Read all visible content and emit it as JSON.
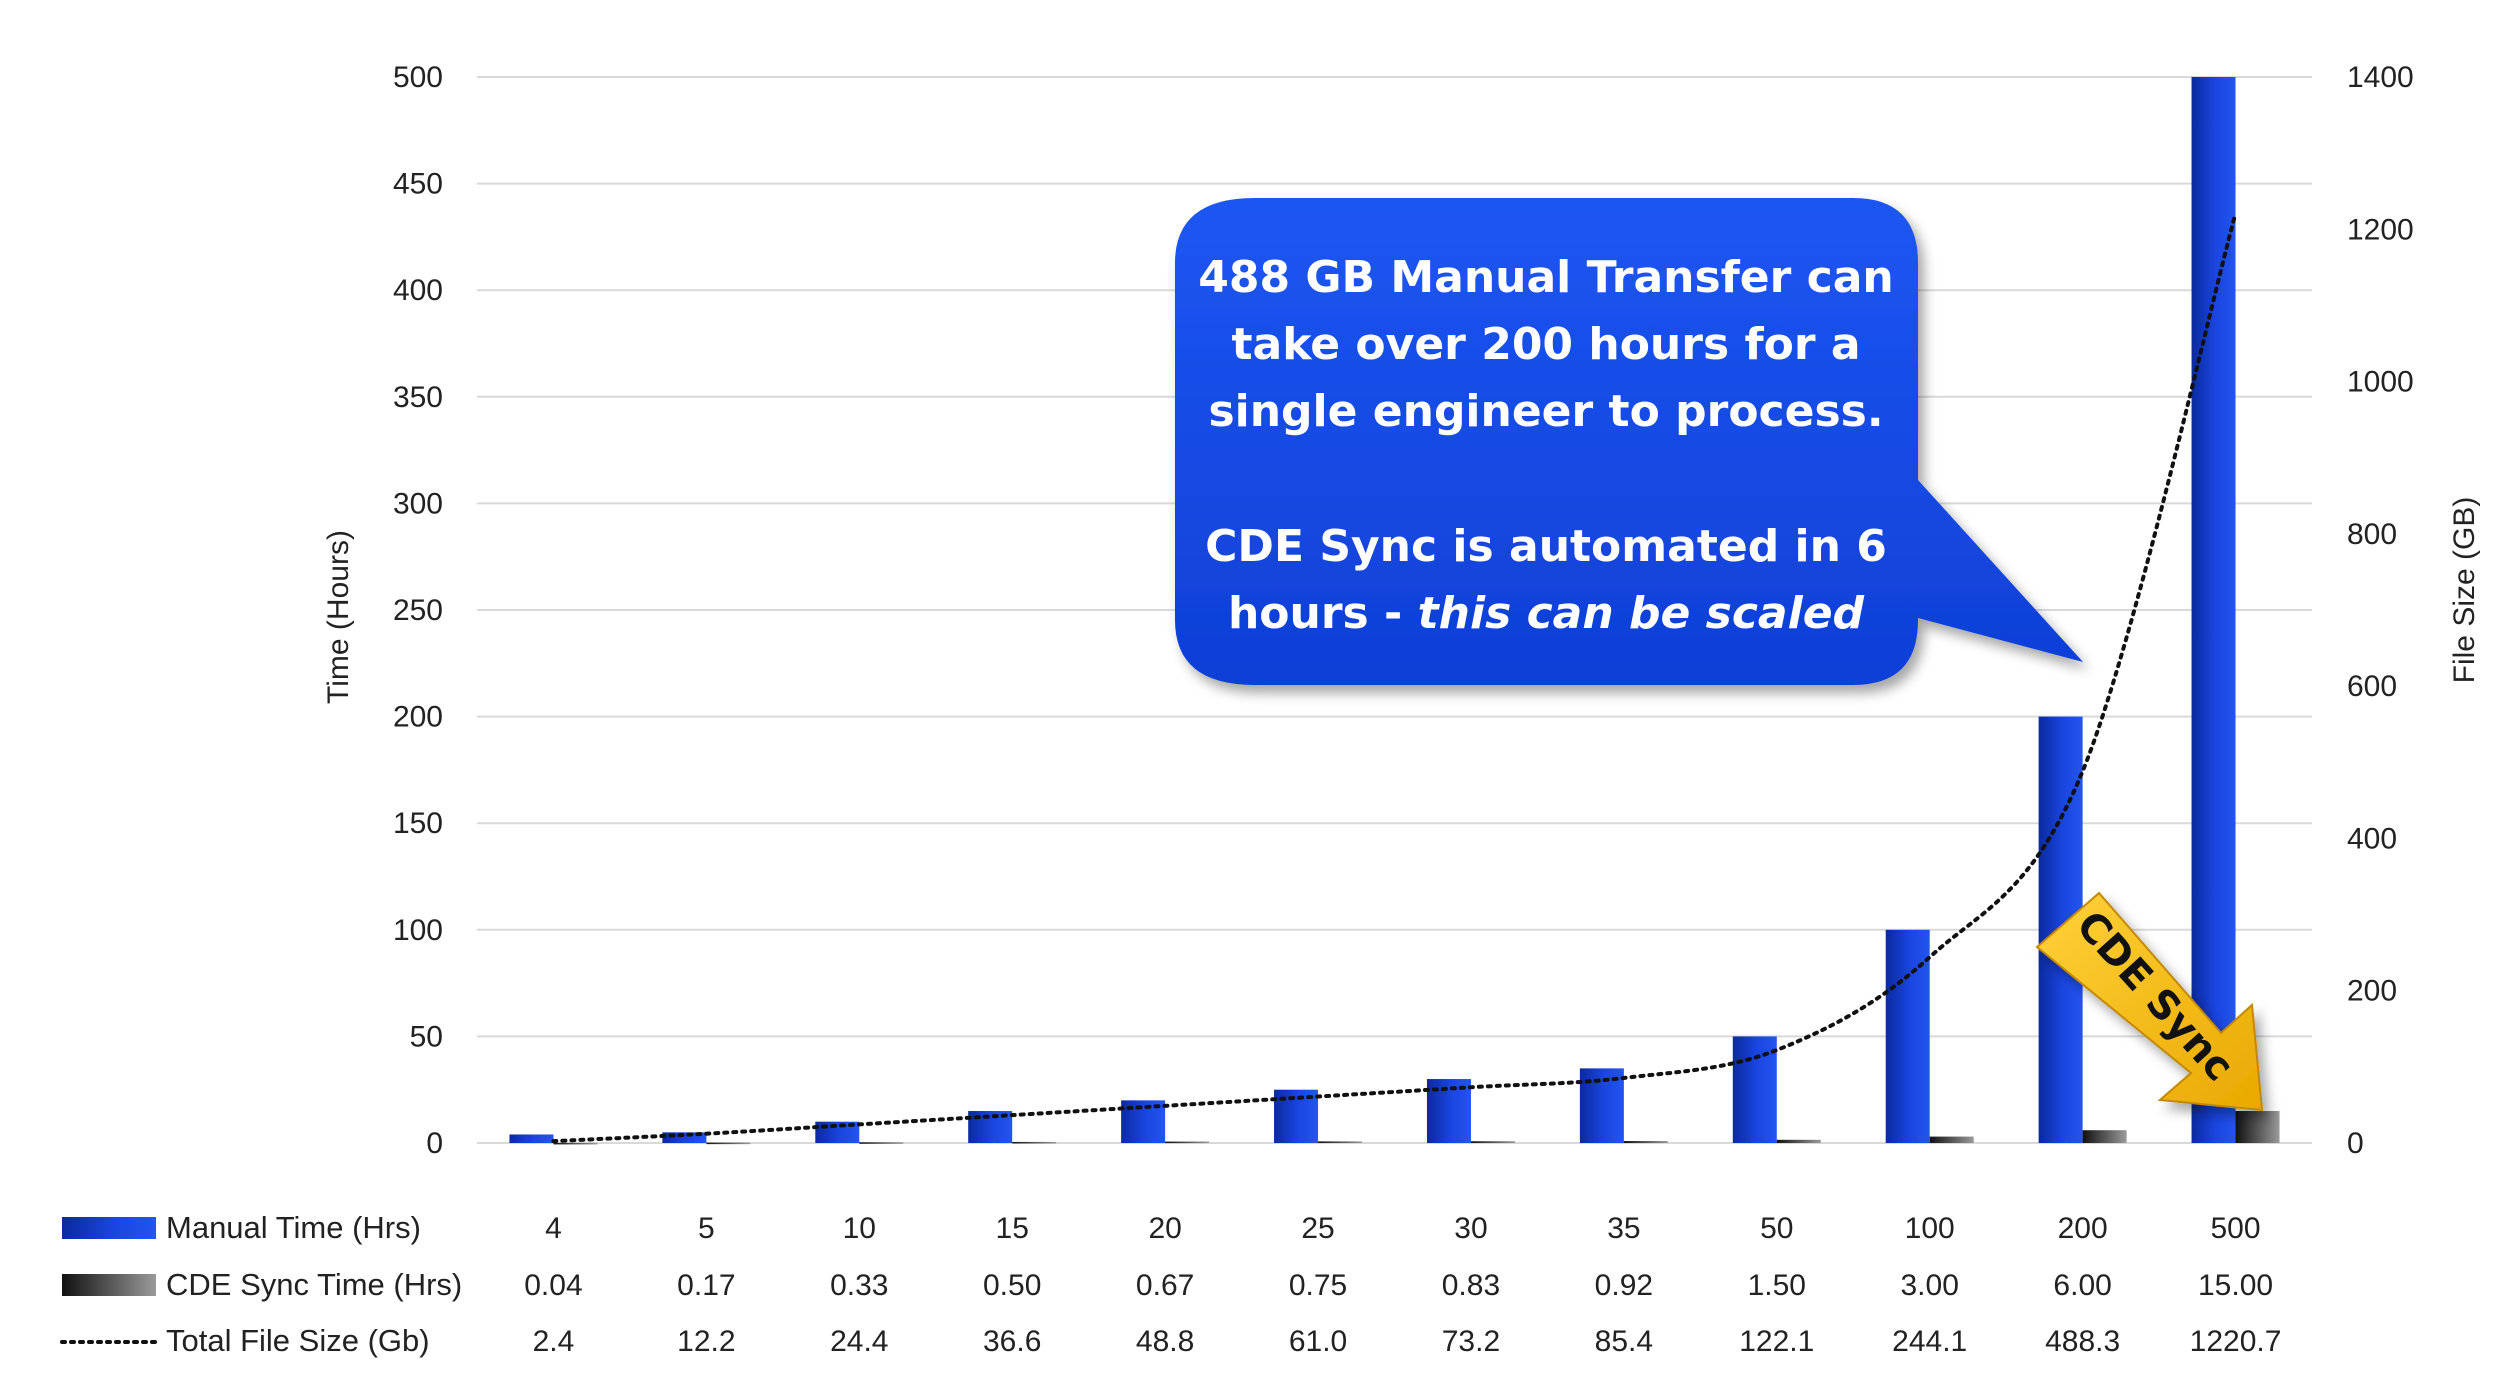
{
  "chart_data": {
    "type": "bar",
    "categories": [
      "4",
      "5",
      "10",
      "15",
      "20",
      "25",
      "30",
      "35",
      "50",
      "100",
      "200",
      "500"
    ],
    "series": [
      {
        "name": "Manual Time (Hrs)",
        "type": "bar",
        "axis": "left",
        "values": [
          4,
          5,
          10,
          15,
          20,
          25,
          30,
          35,
          50,
          100,
          200,
          500
        ],
        "labels": [
          "4",
          "5",
          "10",
          "15",
          "20",
          "25",
          "30",
          "35",
          "50",
          "100",
          "200",
          "500"
        ]
      },
      {
        "name": "CDE Sync Time (Hrs)",
        "type": "bar",
        "axis": "left",
        "values": [
          0.04,
          0.17,
          0.33,
          0.5,
          0.67,
          0.75,
          0.83,
          0.92,
          1.5,
          3.0,
          6.0,
          15.0
        ],
        "labels": [
          "0.04",
          "0.17",
          "0.33",
          "0.50",
          "0.67",
          "0.75",
          "0.83",
          "0.92",
          "1.50",
          "3.00",
          "6.00",
          "15.00"
        ]
      },
      {
        "name": "Total File Size (Gb)",
        "type": "line",
        "style": "dotted",
        "axis": "right",
        "values": [
          2.4,
          12.2,
          24.4,
          36.6,
          48.8,
          61.0,
          73.2,
          85.4,
          122.1,
          244.1,
          488.3,
          1220.7
        ],
        "labels": [
          "2.4",
          "12.2",
          "24.4",
          "36.6",
          "48.8",
          "61.0",
          "73.2",
          "85.4",
          "122.1",
          "244.1",
          "488.3",
          "1220.7"
        ]
      }
    ],
    "ylabel": "Time (Hours)",
    "ylim": [
      0,
      500
    ],
    "yticks": [
      "0",
      "50",
      "100",
      "150",
      "200",
      "250",
      "300",
      "350",
      "400",
      "450",
      "500"
    ],
    "y2label": "File Size (GB)",
    "y2lim": [
      0,
      1400
    ],
    "y2ticks": [
      "0",
      "200",
      "400",
      "600",
      "800",
      "1000",
      "1200",
      "1400"
    ],
    "grid": true,
    "legend": "data-table-below",
    "annotations": {
      "callout_lines": [
        "488 GB Manual Transfer can",
        "take over 200 hours for a",
        "single engineer to process.",
        "",
        "CDE Sync is automated in 6"
      ],
      "callout_last_prefix": "hours - ",
      "callout_last_italic": "this can be scaled",
      "arrow_label": "CDE Sync"
    }
  },
  "colors": {
    "manual": "#1a45e0",
    "manual_dark": "#0a2aa0",
    "cde": "#808080",
    "cde_dark": "#111111",
    "callout": "#1447e6",
    "arrow": "#f5b800",
    "grid": "#d9d9d9",
    "line": "#111111"
  }
}
